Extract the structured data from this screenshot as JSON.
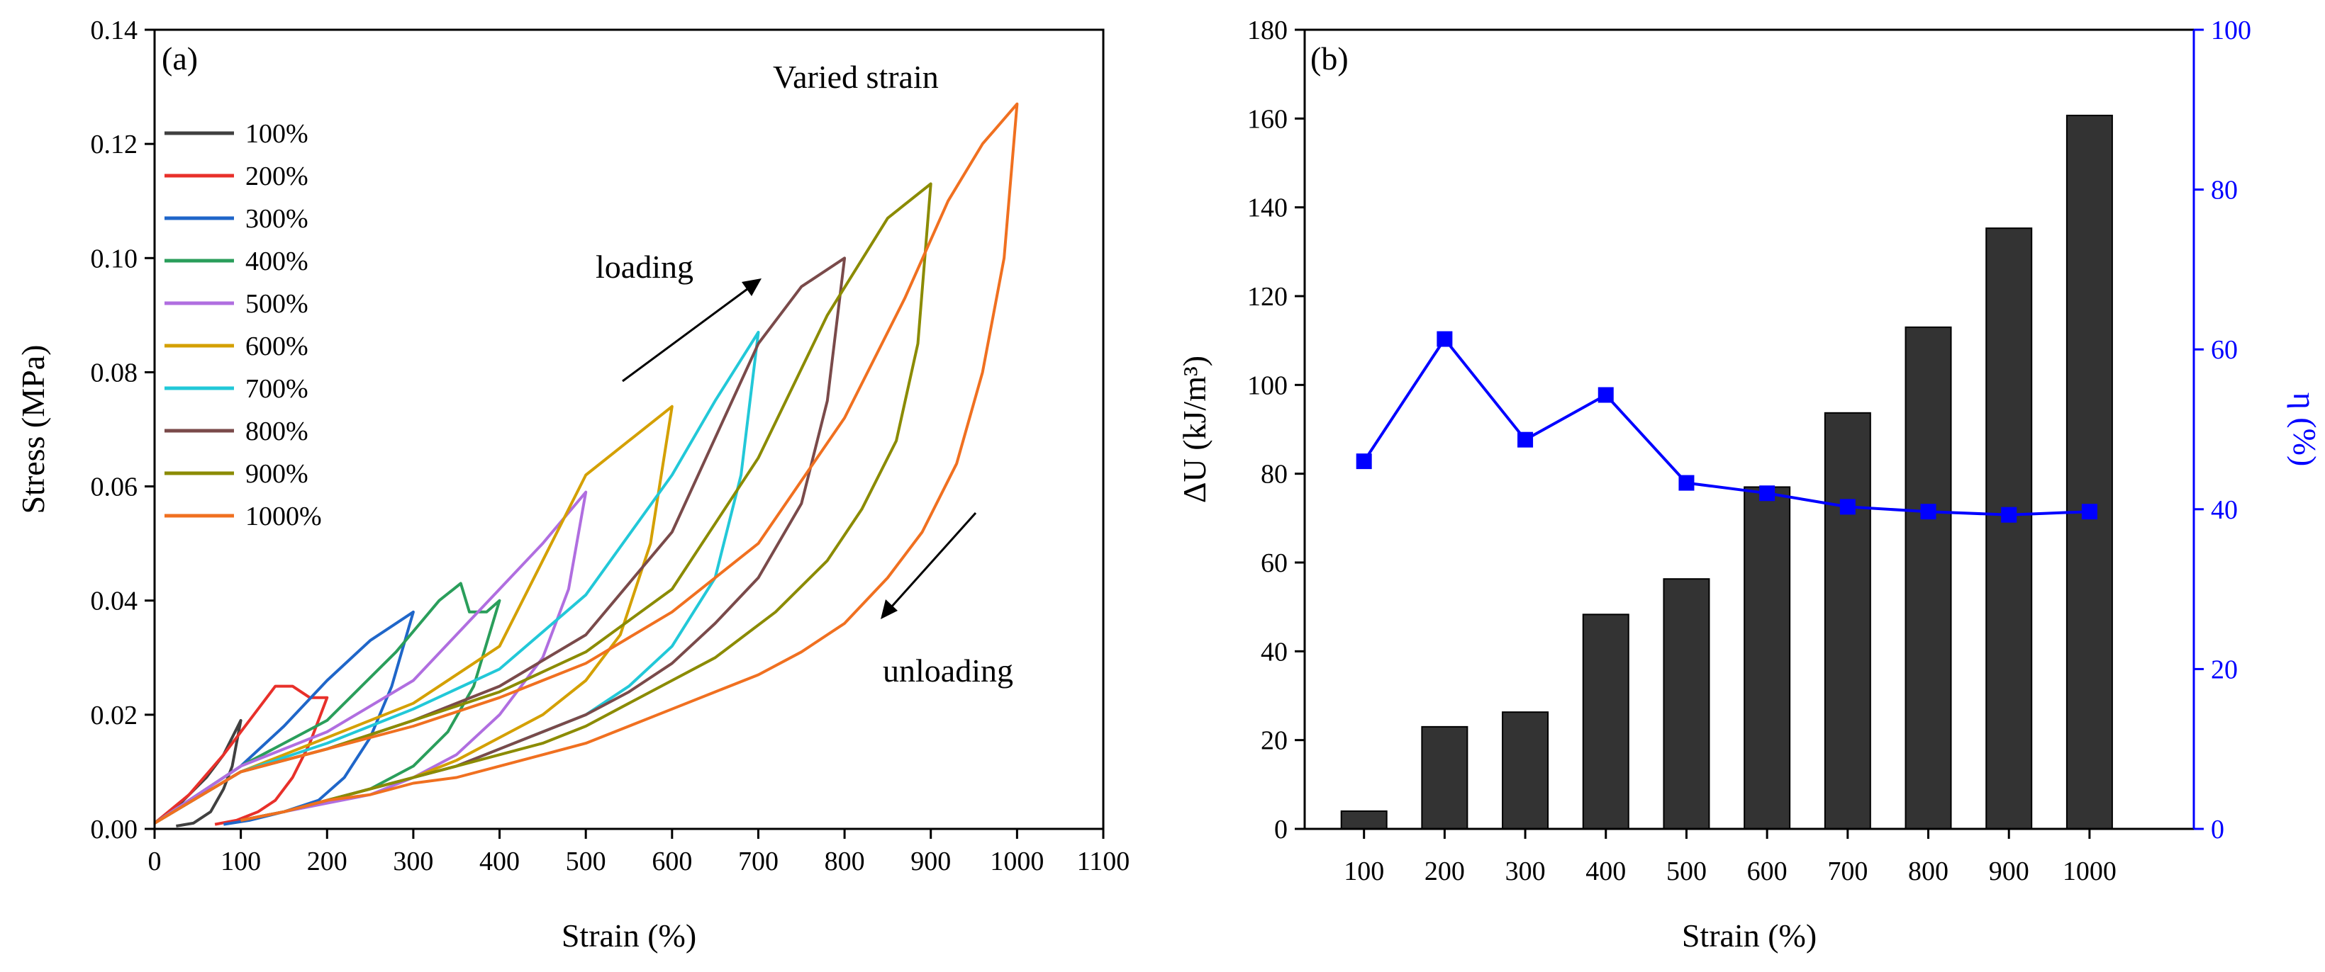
{
  "chart_data": [
    {
      "panel": "a",
      "type": "line",
      "panel_label": "(a)",
      "title": "Varied strain",
      "xlabel": "Strain (%)",
      "ylabel": "Stress (MPa)",
      "xlim": [
        0,
        1100
      ],
      "ylim": [
        0,
        0.14
      ],
      "xticks": [
        0,
        100,
        200,
        300,
        400,
        500,
        600,
        700,
        800,
        900,
        1000,
        1100
      ],
      "xtick_labels": [
        "0",
        "100",
        "200",
        "300",
        "400",
        "500",
        "600",
        "700",
        "800",
        "900",
        "1000",
        "1100"
      ],
      "yticks": [
        0,
        0.02,
        0.04,
        0.06,
        0.08,
        0.1,
        0.12,
        0.14
      ],
      "ytick_labels": [
        "0.00",
        "0.02",
        "0.04",
        "0.06",
        "0.08",
        "0.10",
        "0.12",
        "0.14"
      ],
      "legend_position": "upper-left",
      "annotations": [
        {
          "text": "loading",
          "x": 580,
          "y": 0.1,
          "arrow": "up-right"
        },
        {
          "text": "unloading",
          "x": 950,
          "y": 0.045,
          "arrow": "down-left"
        }
      ],
      "series": [
        {
          "name": "100%",
          "color": "#404040",
          "loading": [
            [
              0,
              0.001
            ],
            [
              20,
              0.003
            ],
            [
              40,
              0.006
            ],
            [
              60,
              0.009
            ],
            [
              80,
              0.013
            ],
            [
              100,
              0.019
            ]
          ],
          "unloading": [
            [
              100,
              0.019
            ],
            [
              90,
              0.011
            ],
            [
              80,
              0.007
            ],
            [
              65,
              0.003
            ],
            [
              45,
              0.001
            ],
            [
              25,
              0.0005
            ]
          ]
        },
        {
          "name": "200%",
          "color": "#e8302a",
          "loading": [
            [
              0,
              0.001
            ],
            [
              40,
              0.006
            ],
            [
              80,
              0.013
            ],
            [
              110,
              0.019
            ],
            [
              140,
              0.025
            ],
            [
              160,
              0.025
            ],
            [
              180,
              0.023
            ],
            [
              200,
              0.023
            ]
          ],
          "unloading": [
            [
              200,
              0.023
            ],
            [
              180,
              0.015
            ],
            [
              160,
              0.009
            ],
            [
              140,
              0.005
            ],
            [
              120,
              0.003
            ],
            [
              95,
              0.0015
            ],
            [
              70,
              0.0008
            ]
          ]
        },
        {
          "name": "300%",
          "color": "#1f66c9",
          "loading": [
            [
              0,
              0.001
            ],
            [
              50,
              0.006
            ],
            [
              100,
              0.011
            ],
            [
              150,
              0.018
            ],
            [
              200,
              0.026
            ],
            [
              250,
              0.033
            ],
            [
              300,
              0.038
            ]
          ],
          "unloading": [
            [
              300,
              0.038
            ],
            [
              275,
              0.025
            ],
            [
              250,
              0.016
            ],
            [
              220,
              0.009
            ],
            [
              190,
              0.005
            ],
            [
              150,
              0.003
            ],
            [
              110,
              0.0015
            ],
            [
              80,
              0.0008
            ]
          ]
        },
        {
          "name": "400%",
          "color": "#2a9e5b",
          "loading": [
            [
              0,
              0.001
            ],
            [
              100,
              0.011
            ],
            [
              200,
              0.019
            ],
            [
              280,
              0.031
            ],
            [
              330,
              0.04
            ],
            [
              355,
              0.043
            ],
            [
              365,
              0.038
            ],
            [
              385,
              0.038
            ],
            [
              400,
              0.04
            ]
          ],
          "unloading": [
            [
              400,
              0.04
            ],
            [
              370,
              0.025
            ],
            [
              340,
              0.017
            ],
            [
              300,
              0.011
            ],
            [
              250,
              0.007
            ],
            [
              200,
              0.005
            ],
            [
              150,
              0.003
            ],
            [
              100,
              0.0015
            ]
          ]
        },
        {
          "name": "500%",
          "color": "#b06ee0",
          "loading": [
            [
              0,
              0.001
            ],
            [
              100,
              0.011
            ],
            [
              200,
              0.017
            ],
            [
              300,
              0.026
            ],
            [
              400,
              0.042
            ],
            [
              450,
              0.05
            ],
            [
              500,
              0.059
            ]
          ],
          "unloading": [
            [
              500,
              0.059
            ],
            [
              480,
              0.042
            ],
            [
              450,
              0.03
            ],
            [
              400,
              0.02
            ],
            [
              350,
              0.013
            ],
            [
              300,
              0.009
            ],
            [
              250,
              0.006
            ],
            [
              200,
              0.0045
            ],
            [
              150,
              0.003
            ],
            [
              100,
              0.0015
            ]
          ]
        },
        {
          "name": "600%",
          "color": "#d4a000",
          "loading": [
            [
              0,
              0.001
            ],
            [
              100,
              0.01
            ],
            [
              200,
              0.016
            ],
            [
              300,
              0.022
            ],
            [
              400,
              0.032
            ],
            [
              500,
              0.062
            ],
            [
              550,
              0.068
            ],
            [
              600,
              0.074
            ]
          ],
          "unloading": [
            [
              600,
              0.074
            ],
            [
              575,
              0.05
            ],
            [
              540,
              0.034
            ],
            [
              500,
              0.026
            ],
            [
              450,
              0.02
            ],
            [
              400,
              0.016
            ],
            [
              350,
              0.012
            ],
            [
              300,
              0.009
            ],
            [
              250,
              0.007
            ],
            [
              200,
              0.005
            ],
            [
              150,
              0.003
            ],
            [
              100,
              0.0015
            ]
          ]
        },
        {
          "name": "700%",
          "color": "#22c8d8",
          "loading": [
            [
              0,
              0.001
            ],
            [
              100,
              0.01
            ],
            [
              200,
              0.015
            ],
            [
              300,
              0.021
            ],
            [
              400,
              0.028
            ],
            [
              500,
              0.041
            ],
            [
              600,
              0.062
            ],
            [
              650,
              0.075
            ],
            [
              700,
              0.087
            ]
          ],
          "unloading": [
            [
              700,
              0.087
            ],
            [
              680,
              0.062
            ],
            [
              650,
              0.044
            ],
            [
              600,
              0.032
            ],
            [
              550,
              0.025
            ],
            [
              500,
              0.02
            ],
            [
              450,
              0.017
            ],
            [
              400,
              0.014
            ],
            [
              350,
              0.011
            ],
            [
              300,
              0.009
            ],
            [
              250,
              0.007
            ],
            [
              200,
              0.005
            ],
            [
              150,
              0.003
            ],
            [
              100,
              0.0015
            ]
          ]
        },
        {
          "name": "800%",
          "color": "#7a4a4a",
          "loading": [
            [
              0,
              0.001
            ],
            [
              100,
              0.01
            ],
            [
              200,
              0.014
            ],
            [
              300,
              0.019
            ],
            [
              400,
              0.025
            ],
            [
              500,
              0.034
            ],
            [
              600,
              0.052
            ],
            [
              700,
              0.085
            ],
            [
              750,
              0.095
            ],
            [
              800,
              0.1
            ]
          ],
          "unloading": [
            [
              800,
              0.1
            ],
            [
              780,
              0.075
            ],
            [
              750,
              0.057
            ],
            [
              700,
              0.044
            ],
            [
              650,
              0.036
            ],
            [
              600,
              0.029
            ],
            [
              550,
              0.024
            ],
            [
              500,
              0.02
            ],
            [
              450,
              0.017
            ],
            [
              400,
              0.014
            ],
            [
              350,
              0.011
            ],
            [
              300,
              0.009
            ],
            [
              250,
              0.007
            ],
            [
              200,
              0.005
            ],
            [
              150,
              0.003
            ],
            [
              100,
              0.0015
            ]
          ]
        },
        {
          "name": "900%",
          "color": "#8b8b00",
          "loading": [
            [
              0,
              0.001
            ],
            [
              100,
              0.01
            ],
            [
              200,
              0.014
            ],
            [
              300,
              0.019
            ],
            [
              400,
              0.024
            ],
            [
              500,
              0.031
            ],
            [
              600,
              0.042
            ],
            [
              700,
              0.065
            ],
            [
              780,
              0.09
            ],
            [
              850,
              0.107
            ],
            [
              900,
              0.113
            ]
          ],
          "unloading": [
            [
              900,
              0.113
            ],
            [
              885,
              0.085
            ],
            [
              860,
              0.068
            ],
            [
              820,
              0.056
            ],
            [
              780,
              0.047
            ],
            [
              720,
              0.038
            ],
            [
              650,
              0.03
            ],
            [
              600,
              0.026
            ],
            [
              550,
              0.022
            ],
            [
              500,
              0.018
            ],
            [
              450,
              0.015
            ],
            [
              400,
              0.013
            ],
            [
              350,
              0.011
            ],
            [
              300,
              0.009
            ],
            [
              250,
              0.007
            ],
            [
              200,
              0.005
            ],
            [
              150,
              0.003
            ],
            [
              100,
              0.0015
            ]
          ]
        },
        {
          "name": "1000%",
          "color": "#f07020",
          "loading": [
            [
              0,
              0.001
            ],
            [
              100,
              0.01
            ],
            [
              200,
              0.014
            ],
            [
              300,
              0.018
            ],
            [
              400,
              0.023
            ],
            [
              500,
              0.029
            ],
            [
              600,
              0.038
            ],
            [
              700,
              0.05
            ],
            [
              800,
              0.072
            ],
            [
              870,
              0.093
            ],
            [
              920,
              0.11
            ],
            [
              960,
              0.12
            ],
            [
              1000,
              0.127
            ]
          ],
          "unloading": [
            [
              1000,
              0.127
            ],
            [
              985,
              0.1
            ],
            [
              960,
              0.08
            ],
            [
              930,
              0.064
            ],
            [
              890,
              0.052
            ],
            [
              850,
              0.044
            ],
            [
              800,
              0.036
            ],
            [
              750,
              0.031
            ],
            [
              700,
              0.027
            ],
            [
              650,
              0.024
            ],
            [
              600,
              0.021
            ],
            [
              550,
              0.018
            ],
            [
              500,
              0.015
            ],
            [
              450,
              0.013
            ],
            [
              400,
              0.011
            ],
            [
              350,
              0.009
            ],
            [
              300,
              0.008
            ],
            [
              250,
              0.006
            ],
            [
              200,
              0.005
            ],
            [
              150,
              0.003
            ],
            [
              100,
              0.0015
            ]
          ]
        }
      ]
    },
    {
      "panel": "b",
      "type": "bar",
      "panel_label": "(b)",
      "xlabel": "Strain (%)",
      "ylabel_left": "ΔU (kJ/m³)",
      "ylabel_right": "η (%)",
      "categories": [
        "100",
        "200",
        "300",
        "400",
        "500",
        "600",
        "700",
        "800",
        "900",
        "1000"
      ],
      "ylim_left": [
        0,
        180
      ],
      "yticks_left": [
        0,
        20,
        40,
        60,
        80,
        100,
        120,
        140,
        160,
        180
      ],
      "ylim_right": [
        0,
        100
      ],
      "yticks_right": [
        0,
        20,
        40,
        60,
        80,
        100
      ],
      "bar_color": "#333333",
      "line_color": "#0000ff",
      "series": [
        {
          "name": "ΔU",
          "axis": "left",
          "kind": "bar",
          "values": [
            4,
            23,
            26.3,
            48.3,
            56.3,
            77,
            93.7,
            113,
            135.3,
            160.7
          ]
        },
        {
          "name": "η",
          "axis": "right",
          "kind": "line-marker",
          "values": [
            46,
            61.3,
            48.7,
            54.3,
            43.3,
            42,
            40.3,
            39.7,
            39.3,
            39.7
          ]
        }
      ]
    }
  ]
}
